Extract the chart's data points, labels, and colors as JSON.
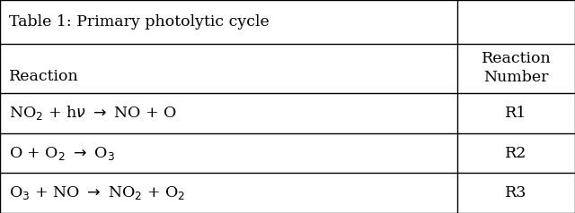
{
  "title": "Table 1: Primary photolytic cycle",
  "col_header_left": "Reaction",
  "col_header_right": "Reaction\nNumber",
  "reactions": [
    {
      "eq": "NO$_2$ + h$\\nu$ $\\rightarrow$ NO + O",
      "num": "R1"
    },
    {
      "eq": "O + O$_2$ $\\rightarrow$ O$_3$",
      "num": "R2"
    },
    {
      "eq": "O$_3$ + NO $\\rightarrow$ NO$_2$ + O$_2$",
      "num": "R3"
    }
  ],
  "col_split": 0.795,
  "bg_color": "#ffffff",
  "border_color": "#000000",
  "font_size": 12.5,
  "title_font_size": 12.5,
  "row_tops": [
    1.0,
    0.795,
    0.565,
    0.375,
    0.188
  ],
  "row_bottoms": [
    0.795,
    0.565,
    0.375,
    0.188,
    0.0
  ]
}
